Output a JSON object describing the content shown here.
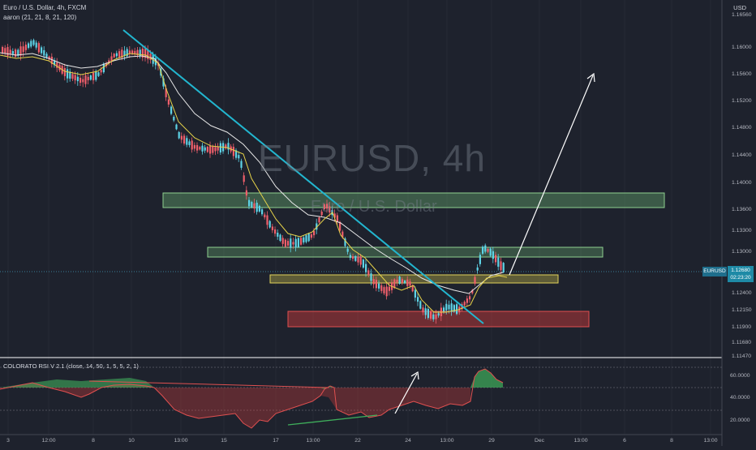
{
  "header": {
    "symbol_line": "Euro / U.S. Dollar, 4h, FXCM",
    "indicator_line": "aaron (21, 21, 8, 21, 120)"
  },
  "watermark": {
    "symbol": "EURUSD, 4h",
    "name": "Euro / U.S. Dollar"
  },
  "price_axis": {
    "currency": "USD",
    "labels": [
      "1.16560",
      "1.16000",
      "1.15600",
      "1.15200",
      "1.14800",
      "1.14400",
      "1.14000",
      "1.13600",
      "1.13300",
      "1.13000",
      "1.12400",
      "1.12150",
      "1.11900",
      "1.11680",
      "1.11470"
    ]
  },
  "price_badge": {
    "symbol": "EURUSD",
    "price": "1.12680",
    "countdown": "02:23:20"
  },
  "rsi": {
    "title": "COLORATO RSI V 2.1",
    "params": "(close, 14, 50, 1, 5, 5, 2, 1)",
    "axis_labels": [
      "60.0000",
      "40.0000",
      "20.0000"
    ]
  },
  "time_axis": {
    "labels": [
      "3",
      "12:00",
      "8",
      "10",
      "13:00",
      "15",
      "17",
      "13:00",
      "22",
      "24",
      "13:00",
      "29",
      "Dec",
      "13:00",
      "6",
      "8",
      "13:00"
    ]
  },
  "colors": {
    "background": "#1e222d",
    "bull_candle": "#5ed3e6",
    "bear_candle": "#ef5f6b",
    "trendline": "#22b6cf",
    "ma_white": "#e8e8e8",
    "ma_yellow": "#e6d34a",
    "green_zone": "#76c27a",
    "yellow_zone": "#d6c84a",
    "red_zone": "#d23b3b"
  }
}
